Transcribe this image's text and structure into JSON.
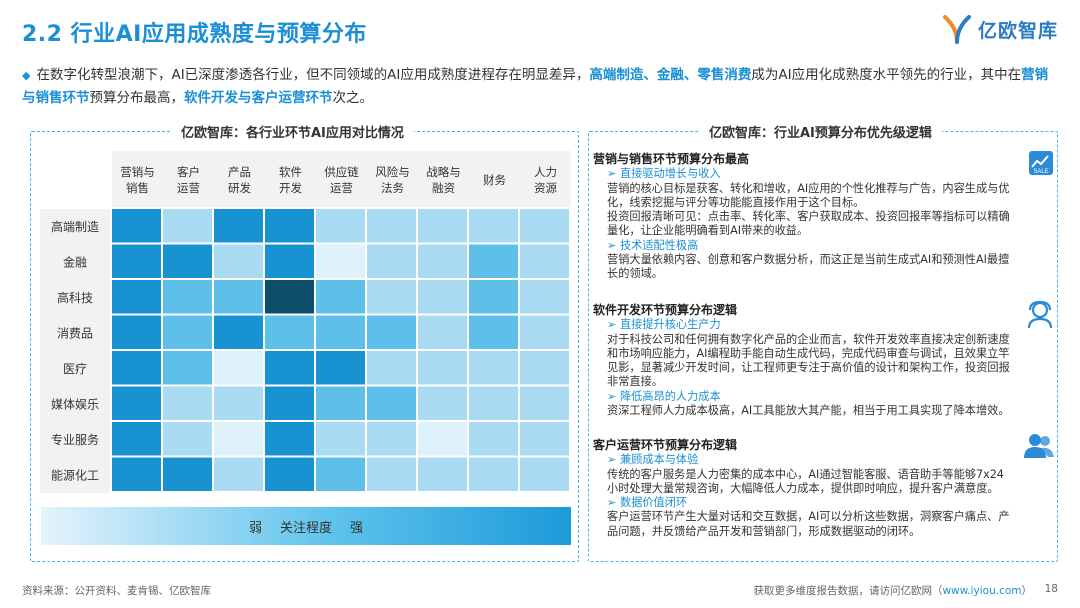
{
  "header": {
    "title": "2.2 行业AI应用成熟度与预算分布",
    "logo_text": "亿欧智库"
  },
  "intro": {
    "p1": "在数字化转型浪潮下，AI已深度渗透各行业，但不同领域的AI应用成熟度进程存在明显差异，",
    "hl1": "高端制造、金融、零售消费",
    "p2": "成为AI应用化成熟度水平领先的行业，其中在",
    "hl2": "营销与销售环节",
    "p3": "预算分布最高，",
    "hl3": "软件开发与客户运营环节",
    "p4": "次之。"
  },
  "left_panel": {
    "title": "亿欧智库：各行业环节AI应用对比情况"
  },
  "right_panel": {
    "title": "亿欧智库：行业AI预算分布优先级逻辑"
  },
  "chart_data": {
    "type": "heatmap",
    "title": "亿欧智库：各行业环节AI应用对比情况",
    "columns": [
      "营销与\n销售",
      "客户\n运营",
      "产品\n研发",
      "软件\n开发",
      "供应链\n运营",
      "风险与\n法务",
      "战略与\n融资",
      "财务",
      "人力\n资源"
    ],
    "rows": [
      "高端制造",
      "金融",
      "高科技",
      "消费品",
      "医疗",
      "媒体娱乐",
      "专业服务",
      "能源化工"
    ],
    "value_scale": "1 = 弱, 5 = 强",
    "values": [
      [
        4,
        2,
        4,
        4,
        2,
        2,
        2,
        2,
        2
      ],
      [
        4,
        4,
        2,
        4,
        1,
        2,
        2,
        3,
        2
      ],
      [
        4,
        3,
        3,
        5,
        3,
        2,
        2,
        3,
        2
      ],
      [
        4,
        3,
        4,
        3,
        3,
        3,
        2,
        3,
        2
      ],
      [
        4,
        3,
        1,
        4,
        4,
        2,
        2,
        2,
        2
      ],
      [
        4,
        2,
        2,
        4,
        3,
        3,
        2,
        2,
        2
      ],
      [
        4,
        2,
        1,
        4,
        2,
        2,
        1,
        2,
        2
      ],
      [
        4,
        4,
        2,
        4,
        3,
        2,
        2,
        2,
        2
      ]
    ],
    "colors": [
      "#dff1fa",
      "#a9dcf2",
      "#5ebfe9",
      "#1893d1",
      "#0c4e6b"
    ],
    "legend": {
      "low": "弱",
      "label": "关注程度",
      "high": "强"
    }
  },
  "sections": [
    {
      "heading": "营销与销售环节预算分布最高",
      "icon": "sale-chart-icon",
      "items": [
        {
          "kind": "sub",
          "text": "直接驱动增长与收入"
        },
        {
          "kind": "txt",
          "text": "营销的核心目标是获客、转化和增收，AI应用的个性化推荐与广告，内容生成与优化，线索挖掘与评分等功能能直接作用于这个目标。"
        },
        {
          "kind": "txt",
          "text": "投资回报清晰可见：点击率、转化率、客户获取成本、投资回报率等指标可以精确量化，让企业能明确看到AI带来的收益。"
        },
        {
          "kind": "sub",
          "text": "技术适配性极高"
        },
        {
          "kind": "txt",
          "text": "营销大量依赖内容、创意和客户数据分析，而这正是当前生成式AI和预测性AI最擅长的领域。"
        }
      ]
    },
    {
      "heading": "软件开发环节预算分布逻辑",
      "icon": "developer-icon",
      "items": [
        {
          "kind": "sub",
          "text": "直接提升核心生产力"
        },
        {
          "kind": "txt",
          "text": "对于科技公司和任何拥有数字化产品的企业而言，软件开发效率直接决定创新速度和市场响应能力，AI编程助手能自动生成代码，完成代码审查与调试，且效果立竿见影，显著减少开发时间，让工程师更专注于高价值的设计和架构工作，投资回报非常直接。"
        },
        {
          "kind": "sub",
          "text": "降低高昂的人力成本"
        },
        {
          "kind": "txt",
          "text": "资深工程师人力成本极高，AI工具能放大其产能，相当于用工具实现了降本增效。"
        }
      ]
    },
    {
      "heading": "客户运营环节预算分布逻辑",
      "icon": "users-icon",
      "items": [
        {
          "kind": "sub",
          "text": "兼顾成本与体验"
        },
        {
          "kind": "txt",
          "text": "传统的客户服务是人力密集的成本中心，AI通过智能客服、语音助手等能够7x24小时处理大量常规咨询，大幅降低人力成本，提供即时响应，提升客户满意度。"
        },
        {
          "kind": "sub",
          "text": "数据价值闭环"
        },
        {
          "kind": "txt",
          "text": "客户运营环节产生大量对话和交互数据，AI可以分析这些数据，洞察客户痛点、产品问题，并反馈给产品开发和营销部门，形成数据驱动的闭环。"
        }
      ]
    }
  ],
  "footer": {
    "source": "资料来源：公开资料、麦肯锡、亿欧智库",
    "more": "获取更多维度报告数据，请访问亿欧网（",
    "url": "www.iyiou.com",
    "close": "）",
    "page": "18"
  }
}
